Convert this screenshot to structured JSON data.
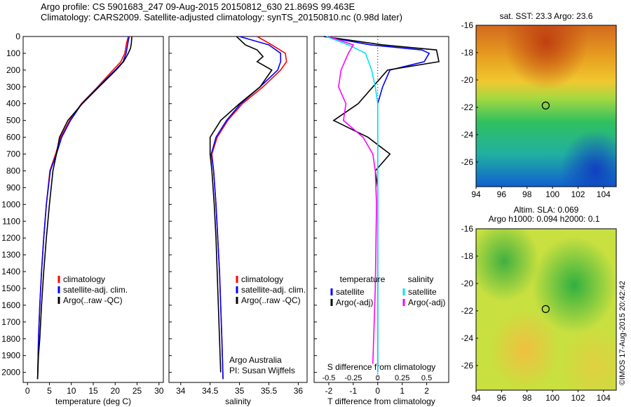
{
  "header": {
    "title_line1": "Argo profile: CS 5901683_247 09-Aug-2015 20150812_630 21.869S 99.463E",
    "title_line2": "Climatology: CARS2009. Satellite-adjusted climatology: synTS_20150810.nc (0.98d later)"
  },
  "credit": "©IMOS 17-Aug-2015 20:42:42",
  "colors": {
    "climatology": "#ff0000",
    "satellite": "#0000ff",
    "argo": "#000000",
    "sat_salinity": "#00e5ee",
    "argo_salinity": "#ff00ff"
  },
  "chart_data": [
    {
      "type": "line",
      "xlabel": "temperature (deg C)",
      "ylabel": "",
      "xlim": [
        -1,
        31
      ],
      "ylim": [
        2060,
        0
      ],
      "xticks": [
        0,
        5,
        10,
        15,
        20,
        25,
        30
      ],
      "yticks": [
        0,
        100,
        200,
        300,
        400,
        500,
        600,
        700,
        800,
        900,
        1000,
        1100,
        1200,
        1300,
        1400,
        1500,
        1600,
        1700,
        1800,
        1900,
        2000
      ],
      "legend": [
        "climatology",
        "satellite-adj. clim.",
        "Argo(..raw -QC)"
      ],
      "series": [
        {
          "name": "climatology",
          "color": "#ff0000",
          "x": [
            23,
            22.6,
            22.2,
            21.3,
            19.5,
            16,
            12.3,
            9.6,
            7.6,
            6.4,
            5.1,
            4.3,
            3.7,
            3.2,
            2.8,
            2.5,
            2.3
          ],
          "y": [
            0,
            40,
            100,
            150,
            200,
            300,
            400,
            500,
            600,
            700,
            800,
            1000,
            1200,
            1400,
            1600,
            1800,
            2040
          ]
        },
        {
          "name": "satellite-adj. clim.",
          "color": "#0000ff",
          "x": [
            23.2,
            22.9,
            22.5,
            21.8,
            20,
            16.2,
            12.4,
            9.8,
            7.8,
            6.6,
            5.2,
            4.3,
            3.7,
            3.2,
            2.8,
            2.5,
            2.3
          ],
          "y": [
            0,
            40,
            100,
            150,
            200,
            300,
            400,
            500,
            600,
            700,
            800,
            1000,
            1200,
            1400,
            1600,
            1800,
            2040
          ]
        },
        {
          "name": "Argo(..raw -QC)",
          "color": "#000000",
          "x": [
            23.8,
            23.7,
            23.5,
            23,
            21.9,
            20.2,
            16.3,
            12.5,
            9.2,
            7.3,
            6.6,
            5.8,
            5,
            4.3,
            3.7,
            3.2,
            2.8,
            2.5,
            2.3
          ],
          "y": [
            0,
            40,
            70,
            100,
            150,
            200,
            300,
            400,
            500,
            600,
            700,
            800,
            1000,
            1200,
            1400,
            1600,
            1800,
            1900,
            2040
          ]
        }
      ]
    },
    {
      "type": "line",
      "xlabel": "salinity",
      "ylabel": "",
      "xlim": [
        33.8,
        36.15
      ],
      "ylim": [
        2060,
        0
      ],
      "xticks": [
        34,
        34.5,
        35,
        35.5,
        36
      ],
      "legend": [
        "climatology",
        "satellite-adj. clim.",
        "Argo(..raw -QC)"
      ],
      "footnote": [
        "Argo Australia",
        "PI: Susan Wijffels"
      ],
      "series": [
        {
          "name": "climatology",
          "color": "#ff0000",
          "x": [
            35.3,
            35.55,
            35.78,
            35.8,
            35.7,
            35.4,
            35.05,
            34.8,
            34.62,
            34.53,
            34.56,
            34.6,
            34.63,
            34.66,
            34.68,
            34.7,
            34.72
          ],
          "y": [
            0,
            50,
            100,
            150,
            200,
            300,
            400,
            500,
            600,
            700,
            800,
            1000,
            1200,
            1400,
            1600,
            1800,
            2040
          ]
        },
        {
          "name": "satellite-adj. clim.",
          "color": "#0000ff",
          "x": [
            35.0,
            35.5,
            35.7,
            35.7,
            35.65,
            35.35,
            35.02,
            34.78,
            34.6,
            34.52,
            34.56,
            34.6,
            34.63,
            34.66,
            34.68,
            34.7,
            34.72
          ],
          "y": [
            0,
            50,
            100,
            150,
            200,
            300,
            400,
            500,
            600,
            700,
            800,
            1000,
            1200,
            1400,
            1600,
            1800,
            2040
          ]
        },
        {
          "name": "Argo(..raw -QC)",
          "color": "#000000",
          "x": [
            34.95,
            35.1,
            35.3,
            35.4,
            35.3,
            35.55,
            35.35,
            35.0,
            34.68,
            34.5,
            34.5,
            34.53,
            34.57,
            34.6,
            34.62,
            34.64,
            34.66,
            34.67,
            34.68
          ],
          "y": [
            0,
            50,
            80,
            120,
            150,
            200,
            300,
            400,
            500,
            600,
            700,
            800,
            1000,
            1200,
            1400,
            1600,
            1800,
            1900,
            2000
          ]
        }
      ]
    },
    {
      "type": "line",
      "xlabel": "T difference from climatology",
      "xlabel_top": "S difference from climatology",
      "ylabel": "",
      "xlim": [
        -2.6,
        2.9
      ],
      "ylim": [
        2060,
        0
      ],
      "xticks": [
        -2,
        -1,
        0,
        1,
        2
      ],
      "xticks_s": [
        -0.5,
        -0.25,
        0,
        0.25,
        0.5
      ],
      "legend_title": [
        "temperature",
        "salinity"
      ],
      "legend": [
        "satellite",
        "Argo(-adj)",
        "satellite",
        "Argo(-adj)"
      ],
      "series": [
        {
          "name": "satellite",
          "color": "#0000ff",
          "x": [
            -2.2,
            -0.3,
            1.8,
            2.1,
            1.9,
            0.5,
            0.2,
            0,
            0,
            0,
            0,
            0,
            0,
            0,
            0
          ],
          "y": [
            0,
            50,
            80,
            100,
            150,
            200,
            300,
            400,
            500,
            600,
            700,
            800,
            1000,
            1500,
            2000
          ]
        },
        {
          "name": "Argo(-adj)",
          "color": "#000000",
          "x": [
            -2.2,
            0.2,
            2.4,
            2.5,
            0.4,
            -0.2,
            -0.8,
            -1.8,
            -0.4,
            0.5,
            -0.1,
            0,
            0,
            0,
            0
          ],
          "y": [
            0,
            50,
            80,
            150,
            200,
            300,
            400,
            500,
            600,
            700,
            800,
            900,
            1000,
            1500,
            2000
          ]
        },
        {
          "name": "satellite",
          "color": "#00e5ee",
          "x": [
            -2.1,
            -1.2,
            -0.5,
            -0.25,
            -0.1,
            0,
            0,
            0,
            0,
            0,
            0,
            0,
            0
          ],
          "y": [
            0,
            50,
            100,
            200,
            300,
            400,
            500,
            600,
            700,
            800,
            1000,
            1500,
            2000
          ]
        },
        {
          "name": "Argo(-adj)",
          "color": "#ff00ff",
          "x": [
            -2.0,
            -1.0,
            -1.2,
            -1.5,
            -1.6,
            -1.3,
            -1.4,
            -0.6,
            -0.2,
            -0.1,
            -0.05,
            -0.1,
            -0.2
          ],
          "y": [
            0,
            50,
            100,
            200,
            300,
            400,
            500,
            600,
            700,
            800,
            1000,
            1500,
            1950
          ]
        }
      ]
    },
    {
      "type": "heatmap",
      "title": "sat. SST: 23.3 Argo: 23.6",
      "xlim": [
        94,
        105
      ],
      "ylim": [
        -27.8,
        -16
      ],
      "xticks": [
        94,
        96,
        98,
        100,
        102,
        104
      ],
      "yticks": [
        -16,
        -18,
        -20,
        -22,
        -24,
        -26
      ],
      "marker": {
        "x": 99.463,
        "y": -21.869
      }
    },
    {
      "type": "heatmap",
      "title": "Altim. SLA: 0.069",
      "subtitle": "Argo h1000: 0.094 h2000: 0.1",
      "xlim": [
        94,
        105
      ],
      "ylim": [
        -27.8,
        -16
      ],
      "xticks": [
        94,
        96,
        98,
        100,
        102,
        104
      ],
      "yticks": [
        -16,
        -18,
        -20,
        -22,
        -24,
        -26
      ],
      "marker": {
        "x": 99.463,
        "y": -21.869
      }
    }
  ]
}
